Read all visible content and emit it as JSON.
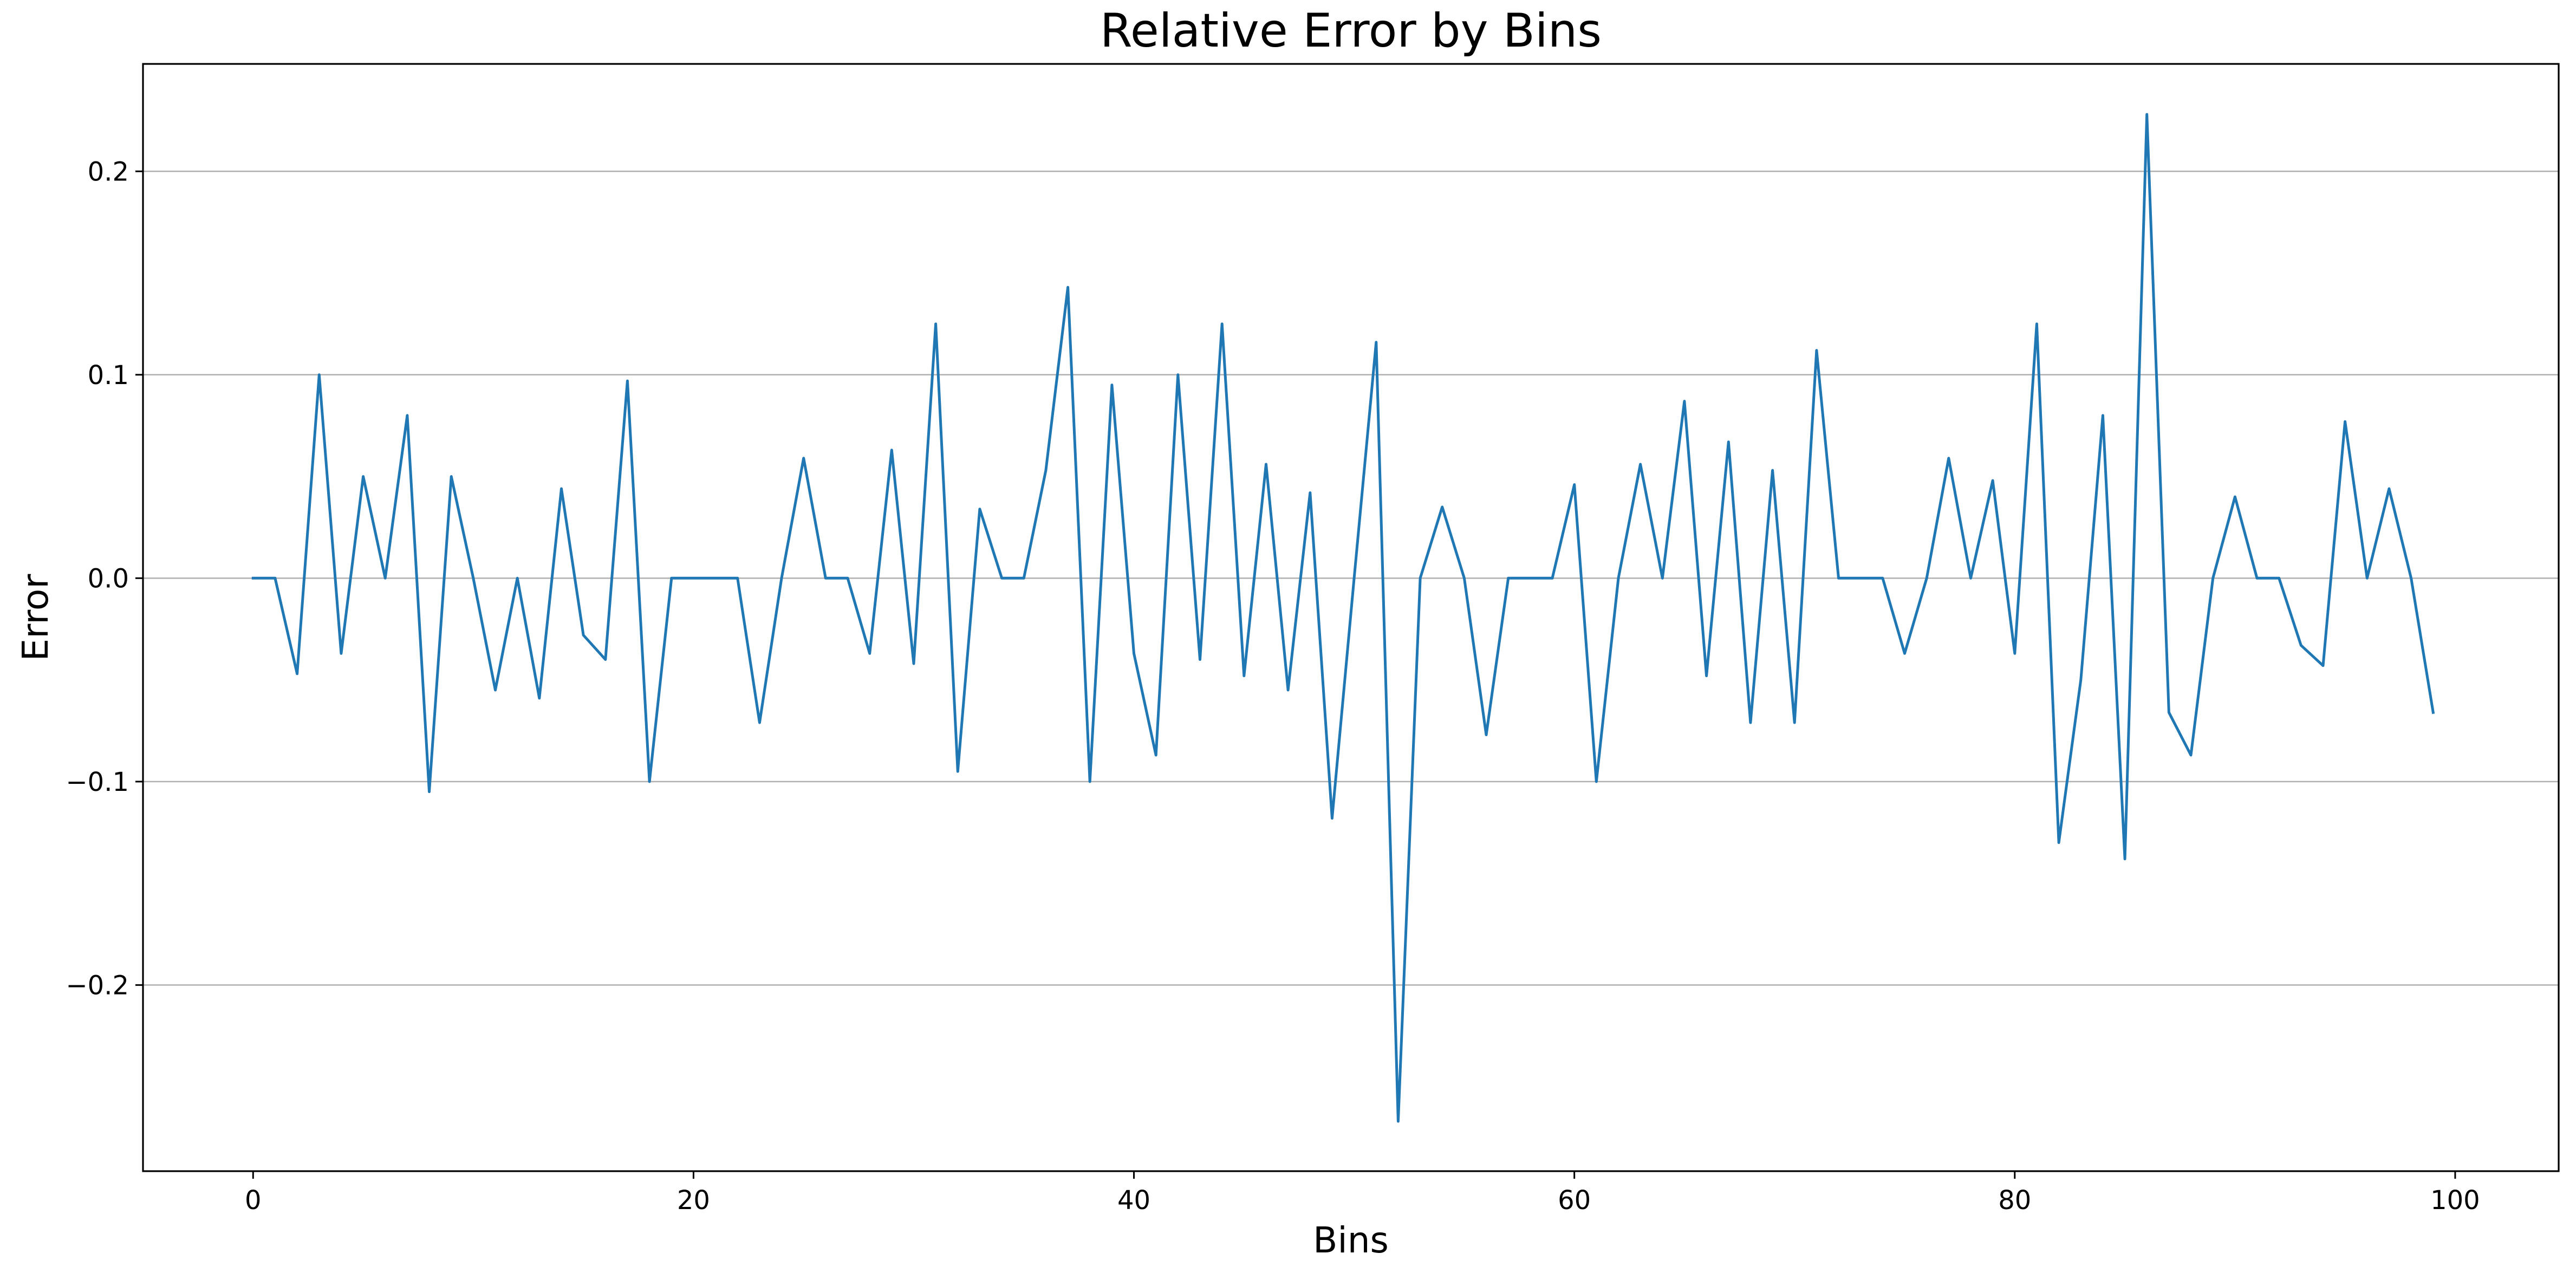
{
  "chart_data": {
    "type": "line",
    "title": "Relative Error by Bins",
    "xlabel": "Bins",
    "ylabel": "Error",
    "xlim": [
      -5,
      104.7
    ],
    "ylim": [
      -0.2915,
      0.2528
    ],
    "xticks": [
      0,
      20,
      40,
      60,
      80,
      100
    ],
    "xtick_labels": [
      "0",
      "20",
      "40",
      "60",
      "80",
      "100"
    ],
    "yticks": [
      -0.2,
      -0.1,
      0.0,
      0.1,
      0.2
    ],
    "ytick_labels": [
      "−0.2",
      "−0.1",
      "0.0",
      "0.1",
      "0.2"
    ],
    "grid": "y-axis only",
    "legend": "none",
    "line_color": "#1f77b4",
    "grid_color": "#b0b0b0",
    "series": [
      {
        "x": [
          0,
          1,
          2,
          3,
          4,
          5,
          6,
          7,
          8,
          9,
          10,
          11,
          12,
          13,
          14,
          15,
          16,
          17,
          18,
          19,
          20,
          21,
          22,
          23,
          24,
          25,
          26,
          27,
          28,
          29,
          30,
          31,
          32,
          33,
          34,
          35,
          36,
          37,
          38,
          39,
          40,
          41,
          42,
          43,
          44,
          45,
          46,
          47,
          48,
          49,
          50,
          51,
          52,
          53,
          54,
          55,
          56,
          57,
          58,
          59,
          60,
          61,
          62,
          63,
          64,
          65,
          66,
          67,
          68,
          69,
          70,
          71,
          72,
          73,
          74,
          75,
          76,
          77,
          78,
          79,
          80,
          81,
          82,
          83,
          84,
          85,
          86,
          87,
          88,
          89,
          90,
          91,
          92,
          93,
          94,
          95,
          96,
          97,
          98,
          99
        ],
        "values": [
          0,
          0,
          -0.047,
          0.1,
          -0.037,
          0.05,
          0,
          0.08,
          -0.105,
          0.05,
          0,
          -0.055,
          0,
          -0.059,
          0.044,
          -0.028,
          -0.04,
          0.097,
          -0.1,
          0,
          0,
          0,
          0,
          -0.071,
          0,
          0.059,
          0,
          0,
          -0.037,
          0.063,
          -0.042,
          0.125,
          -0.095,
          0.034,
          0,
          0,
          0.053,
          0.143,
          -0.1,
          0.095,
          -0.037,
          -0.087,
          0.1,
          -0.04,
          0.125,
          -0.048,
          0.056,
          -0.055,
          0.042,
          -0.118,
          0,
          0.116,
          -0.267,
          0,
          0.035,
          0,
          -0.077,
          0,
          0,
          0,
          0.046,
          -0.1,
          0,
          0.056,
          0,
          0.087,
          -0.048,
          0.067,
          -0.071,
          0.053,
          -0.071,
          0.112,
          0,
          0,
          0,
          -0.037,
          0,
          0.059,
          0,
          0.048,
          -0.037,
          0.125,
          -0.13,
          -0.05,
          0.08,
          -0.138,
          0.228,
          -0.066,
          -0.087,
          0,
          0.04,
          0,
          0,
          -0.033,
          -0.043,
          0.077,
          0,
          0.044,
          0,
          -0.066
        ]
      }
    ]
  }
}
